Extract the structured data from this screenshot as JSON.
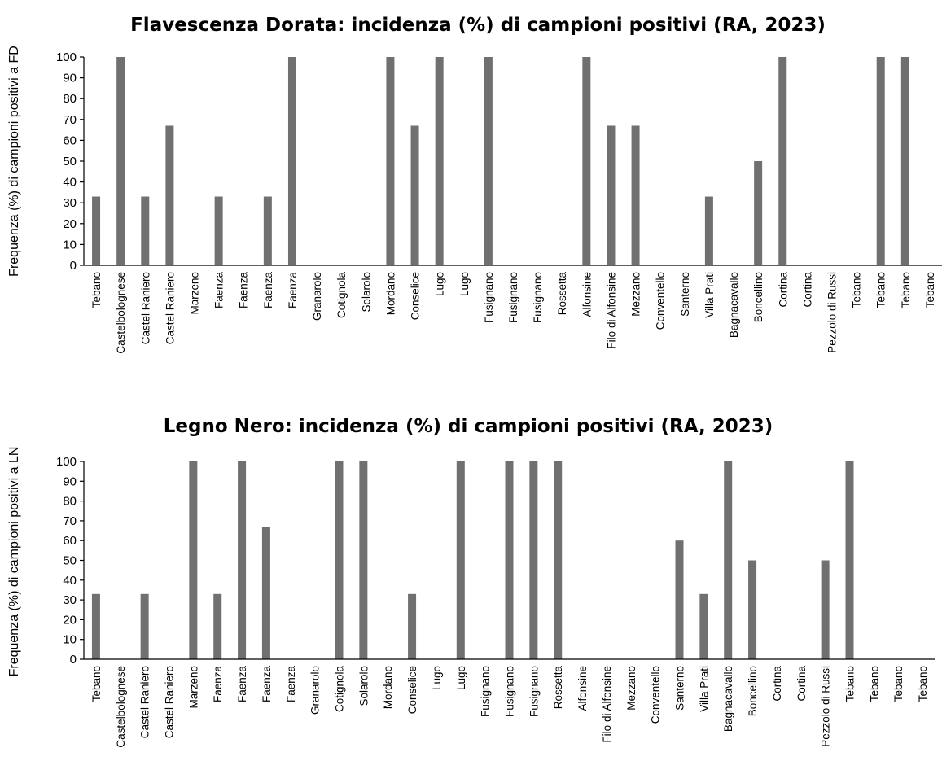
{
  "chart_data": [
    {
      "type": "bar",
      "title": "Flavescenza Dorata: incidenza (%) di campioni positivi (RA, 2023)",
      "xlabel": "",
      "ylabel": "Frequenza (%) di campioni positivi a FD",
      "ylim": [
        0,
        100
      ],
      "yticks": [
        0,
        10,
        20,
        30,
        40,
        50,
        60,
        70,
        80,
        90,
        100
      ],
      "grid": false,
      "bar_color": "#707070",
      "categories": [
        "Tebano",
        "Castelbolognese",
        "Castel Raniero",
        "Castel Raniero",
        "Marzeno",
        "Faenza",
        "Faenza",
        "Faenza",
        "Faenza",
        "Granarolo",
        "Cotignola",
        "Solarolo",
        "Mordano",
        "Conselice",
        "Lugo",
        "Lugo",
        "Fusignano",
        "Fusignano",
        "Fusignano",
        "Rossetta",
        "Alfonsine",
        "Filo di Alfonsine",
        "Mezzano",
        "Conventello",
        "Santerno",
        "Villa Prati",
        "Bagnacavallo",
        "Boncellino",
        "Cortina",
        "Cortina",
        "Pezzolo di Russi",
        "Tebano",
        "Tebano",
        "Tebano",
        "Tebano"
      ],
      "values": [
        33,
        100,
        33,
        67,
        0,
        33,
        0,
        33,
        100,
        0,
        0,
        0,
        100,
        67,
        100,
        0,
        100,
        0,
        0,
        0,
        100,
        67,
        67,
        0,
        0,
        33,
        0,
        50,
        100,
        0,
        0,
        0,
        100,
        100,
        0
      ]
    },
    {
      "type": "bar",
      "title": "Legno Nero: incidenza (%) di campioni positivi (RA, 2023)",
      "xlabel": "",
      "ylabel": "Frequenza (%) di campioni positivi a LN",
      "ylim": [
        0,
        100
      ],
      "yticks": [
        0,
        10,
        20,
        30,
        40,
        50,
        60,
        70,
        80,
        90,
        100
      ],
      "grid": false,
      "bar_color": "#707070",
      "categories": [
        "Tebano",
        "Castelbolognese",
        "Castel Raniero",
        "Castel Raniero",
        "Marzeno",
        "Faenza",
        "Faenza",
        "Faenza",
        "Faenza",
        "Granarolo",
        "Cotignola",
        "Solarolo",
        "Mordano",
        "Conselice",
        "Lugo",
        "Lugo",
        "Fusignano",
        "Fusignano",
        "Fusignano",
        "Rossetta",
        "Alfonsine",
        "Filo di Alfonsine",
        "Mezzano",
        "Conventello",
        "Santerno",
        "Villa Prati",
        "Bagnacavallo",
        "Boncellino",
        "Cortina",
        "Cortina",
        "Pezzolo di Russi",
        "Tebano",
        "Tebano",
        "Tebano",
        "Tebano"
      ],
      "values": [
        33,
        0,
        33,
        0,
        100,
        33,
        100,
        67,
        0,
        0,
        100,
        100,
        0,
        33,
        0,
        100,
        0,
        100,
        100,
        100,
        0,
        0,
        0,
        0,
        60,
        33,
        100,
        50,
        0,
        0,
        50,
        100,
        0,
        0,
        0
      ]
    }
  ]
}
